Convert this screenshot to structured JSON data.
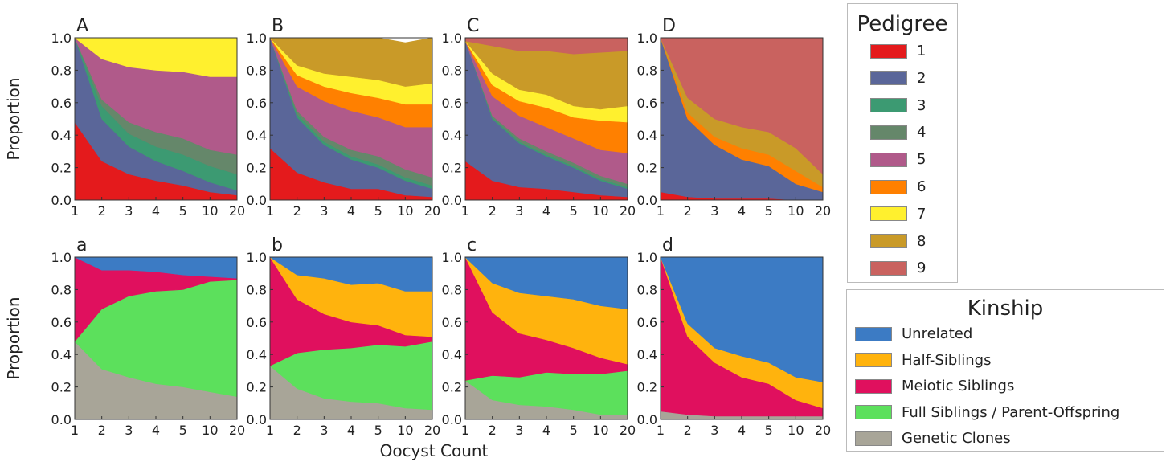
{
  "chart_data": {
    "type": "area",
    "x": [
      "1",
      "2",
      "3",
      "4",
      "5",
      "10",
      "20"
    ],
    "xlabel": "Oocyst Count",
    "ylabel": "Proportion",
    "ylim": [
      0,
      1
    ],
    "yticks": [
      "0.0",
      "0.2",
      "0.4",
      "0.6",
      "0.8",
      "1.0"
    ],
    "pedigree_legend": {
      "title": "Pedigree",
      "entries": [
        {
          "name": "1",
          "color": "#e41a1c"
        },
        {
          "name": "2",
          "color": "#5a6699"
        },
        {
          "name": "3",
          "color": "#3c9a72"
        },
        {
          "name": "4",
          "color": "#65876a"
        },
        {
          "name": "5",
          "color": "#b05a8a"
        },
        {
          "name": "6",
          "color": "#ff8000"
        },
        {
          "name": "7",
          "color": "#fff02e"
        },
        {
          "name": "8",
          "color": "#c99a28"
        },
        {
          "name": "9",
          "color": "#c9625f"
        }
      ]
    },
    "kinship_legend": {
      "title": "Kinship",
      "entries": [
        {
          "name": "Unrelated",
          "color": "#3c7bc4"
        },
        {
          "name": "Half-Siblings",
          "color": "#ffb30d"
        },
        {
          "name": "Meiotic Siblings",
          "color": "#e0105e"
        },
        {
          "name": "Full Siblings / Parent-Offspring",
          "color": "#5ce05c"
        },
        {
          "name": "Genetic Clones",
          "color": "#a8a598"
        }
      ]
    },
    "pedigree_panels": [
      {
        "label": "A",
        "series": [
          {
            "name": "1",
            "values": [
              0.48,
              0.24,
              0.16,
              0.12,
              0.09,
              0.05,
              0.03
            ]
          },
          {
            "name": "2",
            "values": [
              0.52,
              0.26,
              0.17,
              0.12,
              0.09,
              0.06,
              0.03
            ]
          },
          {
            "name": "3",
            "values": [
              0.0,
              0.08,
              0.08,
              0.09,
              0.1,
              0.1,
              0.1
            ]
          },
          {
            "name": "4",
            "values": [
              0.0,
              0.04,
              0.07,
              0.09,
              0.1,
              0.1,
              0.12
            ]
          },
          {
            "name": "5",
            "values": [
              0.0,
              0.25,
              0.34,
              0.38,
              0.41,
              0.45,
              0.48
            ]
          },
          {
            "name": "6",
            "values": [
              0,
              0,
              0,
              0,
              0,
              0,
              0
            ]
          },
          {
            "name": "7",
            "values": [
              0.0,
              0.13,
              0.18,
              0.2,
              0.21,
              0.24,
              0.24
            ]
          },
          {
            "name": "8",
            "values": [
              0,
              0,
              0,
              0,
              0,
              0,
              0
            ]
          },
          {
            "name": "9",
            "values": [
              0,
              0,
              0,
              0,
              0,
              0,
              0
            ]
          }
        ]
      },
      {
        "label": "B",
        "series": [
          {
            "name": "1",
            "values": [
              0.32,
              0.17,
              0.11,
              0.07,
              0.07,
              0.03,
              0.02
            ]
          },
          {
            "name": "2",
            "values": [
              0.68,
              0.34,
              0.23,
              0.18,
              0.13,
              0.09,
              0.05
            ]
          },
          {
            "name": "3",
            "values": [
              0.0,
              0.02,
              0.02,
              0.02,
              0.02,
              0.02,
              0.02
            ]
          },
          {
            "name": "4",
            "values": [
              0.0,
              0.02,
              0.03,
              0.04,
              0.05,
              0.05,
              0.05
            ]
          },
          {
            "name": "5",
            "values": [
              0.0,
              0.15,
              0.22,
              0.24,
              0.24,
              0.26,
              0.31
            ]
          },
          {
            "name": "6",
            "values": [
              0.0,
              0.07,
              0.09,
              0.11,
              0.12,
              0.14,
              0.14
            ]
          },
          {
            "name": "7",
            "values": [
              0.0,
              0.06,
              0.08,
              0.1,
              0.11,
              0.11,
              0.13
            ]
          },
          {
            "name": "8",
            "values": [
              0.0,
              0.17,
              0.22,
              0.24,
              0.26,
              0.27,
              0.28
            ]
          },
          {
            "name": "9",
            "values": [
              0,
              0,
              0,
              0,
              0,
              0,
              0
            ]
          }
        ]
      },
      {
        "label": "C",
        "series": [
          {
            "name": "1",
            "values": [
              0.24,
              0.12,
              0.08,
              0.07,
              0.05,
              0.03,
              0.02
            ]
          },
          {
            "name": "2",
            "values": [
              0.74,
              0.38,
              0.27,
              0.2,
              0.15,
              0.09,
              0.05
            ]
          },
          {
            "name": "3",
            "values": [
              0.0,
              0.01,
              0.01,
              0.01,
              0.01,
              0.01,
              0.01
            ]
          },
          {
            "name": "4",
            "values": [
              0.0,
              0.01,
              0.02,
              0.02,
              0.02,
              0.02,
              0.02
            ]
          },
          {
            "name": "5",
            "values": [
              0.0,
              0.12,
              0.14,
              0.15,
              0.15,
              0.16,
              0.19
            ]
          },
          {
            "name": "6",
            "values": [
              0.0,
              0.07,
              0.09,
              0.12,
              0.13,
              0.18,
              0.19
            ]
          },
          {
            "name": "7",
            "values": [
              0.0,
              0.07,
              0.07,
              0.08,
              0.07,
              0.07,
              0.1
            ]
          },
          {
            "name": "8",
            "values": [
              0.0,
              0.17,
              0.24,
              0.27,
              0.32,
              0.35,
              0.34
            ]
          },
          {
            "name": "9",
            "values": [
              0.02,
              0.05,
              0.08,
              0.08,
              0.1,
              0.09,
              0.08
            ]
          }
        ]
      },
      {
        "label": "D",
        "series": [
          {
            "name": "1",
            "values": [
              0.05,
              0.02,
              0.01,
              0.01,
              0.01,
              0.0,
              0.0
            ]
          },
          {
            "name": "2",
            "values": [
              0.95,
              0.48,
              0.33,
              0.24,
              0.2,
              0.1,
              0.05
            ]
          },
          {
            "name": "3",
            "values": [
              0,
              0,
              0,
              0,
              0,
              0,
              0
            ]
          },
          {
            "name": "4",
            "values": [
              0,
              0,
              0,
              0,
              0,
              0,
              0
            ]
          },
          {
            "name": "5",
            "values": [
              0,
              0,
              0,
              0,
              0,
              0,
              0
            ]
          },
          {
            "name": "6",
            "values": [
              0.0,
              0.04,
              0.05,
              0.07,
              0.07,
              0.08,
              0.03
            ]
          },
          {
            "name": "7",
            "values": [
              0,
              0,
              0,
              0,
              0,
              0,
              0
            ]
          },
          {
            "name": "8",
            "values": [
              0.0,
              0.09,
              0.11,
              0.13,
              0.14,
              0.14,
              0.08
            ]
          },
          {
            "name": "9",
            "values": [
              0.0,
              0.37,
              0.5,
              0.55,
              0.58,
              0.68,
              0.84
            ]
          }
        ]
      }
    ],
    "kinship_panels": [
      {
        "label": "a",
        "series": [
          {
            "name": "Genetic Clones",
            "values": [
              0.48,
              0.31,
              0.26,
              0.22,
              0.2,
              0.17,
              0.14
            ]
          },
          {
            "name": "Full Siblings / Parent-Offspring",
            "values": [
              0.0,
              0.37,
              0.5,
              0.57,
              0.6,
              0.68,
              0.72
            ]
          },
          {
            "name": "Meiotic Siblings",
            "values": [
              0.52,
              0.24,
              0.16,
              0.12,
              0.09,
              0.03,
              0.01
            ]
          },
          {
            "name": "Half-Siblings",
            "values": [
              0,
              0,
              0,
              0,
              0,
              0,
              0
            ]
          },
          {
            "name": "Unrelated",
            "values": [
              0.0,
              0.08,
              0.08,
              0.09,
              0.11,
              0.12,
              0.13
            ]
          }
        ]
      },
      {
        "label": "b",
        "series": [
          {
            "name": "Genetic Clones",
            "values": [
              0.33,
              0.19,
              0.13,
              0.11,
              0.1,
              0.07,
              0.06
            ]
          },
          {
            "name": "Full Siblings / Parent-Offspring",
            "values": [
              0.0,
              0.22,
              0.3,
              0.33,
              0.36,
              0.38,
              0.42
            ]
          },
          {
            "name": "Meiotic Siblings",
            "values": [
              0.67,
              0.33,
              0.22,
              0.16,
              0.12,
              0.07,
              0.03
            ]
          },
          {
            "name": "Half-Siblings",
            "values": [
              0.0,
              0.15,
              0.22,
              0.23,
              0.26,
              0.27,
              0.28
            ]
          },
          {
            "name": "Unrelated",
            "values": [
              0.0,
              0.11,
              0.13,
              0.17,
              0.16,
              0.21,
              0.21
            ]
          }
        ]
      },
      {
        "label": "c",
        "series": [
          {
            "name": "Genetic Clones",
            "values": [
              0.24,
              0.12,
              0.09,
              0.08,
              0.06,
              0.03,
              0.03
            ]
          },
          {
            "name": "Full Siblings / Parent-Offspring",
            "values": [
              0.0,
              0.15,
              0.17,
              0.21,
              0.22,
              0.25,
              0.27
            ]
          },
          {
            "name": "Meiotic Siblings",
            "values": [
              0.76,
              0.39,
              0.27,
              0.2,
              0.16,
              0.1,
              0.04
            ]
          },
          {
            "name": "Half-Siblings",
            "values": [
              0.0,
              0.18,
              0.25,
              0.27,
              0.3,
              0.32,
              0.34
            ]
          },
          {
            "name": "Unrelated",
            "values": [
              0.0,
              0.16,
              0.22,
              0.24,
              0.26,
              0.3,
              0.32
            ]
          }
        ]
      },
      {
        "label": "d",
        "series": [
          {
            "name": "Genetic Clones",
            "values": [
              0.05,
              0.03,
              0.02,
              0.02,
              0.02,
              0.02,
              0.02
            ]
          },
          {
            "name": "Full Siblings / Parent-Offspring",
            "values": [
              0.0,
              0.0,
              0.0,
              0.0,
              0.0,
              0.0,
              0.0
            ]
          },
          {
            "name": "Meiotic Siblings",
            "values": [
              0.95,
              0.48,
              0.33,
              0.24,
              0.2,
              0.1,
              0.05
            ]
          },
          {
            "name": "Half-Siblings",
            "values": [
              0.0,
              0.08,
              0.09,
              0.13,
              0.13,
              0.14,
              0.16
            ]
          },
          {
            "name": "Unrelated",
            "values": [
              0.0,
              0.41,
              0.56,
              0.61,
              0.65,
              0.74,
              0.77
            ]
          }
        ]
      }
    ]
  }
}
